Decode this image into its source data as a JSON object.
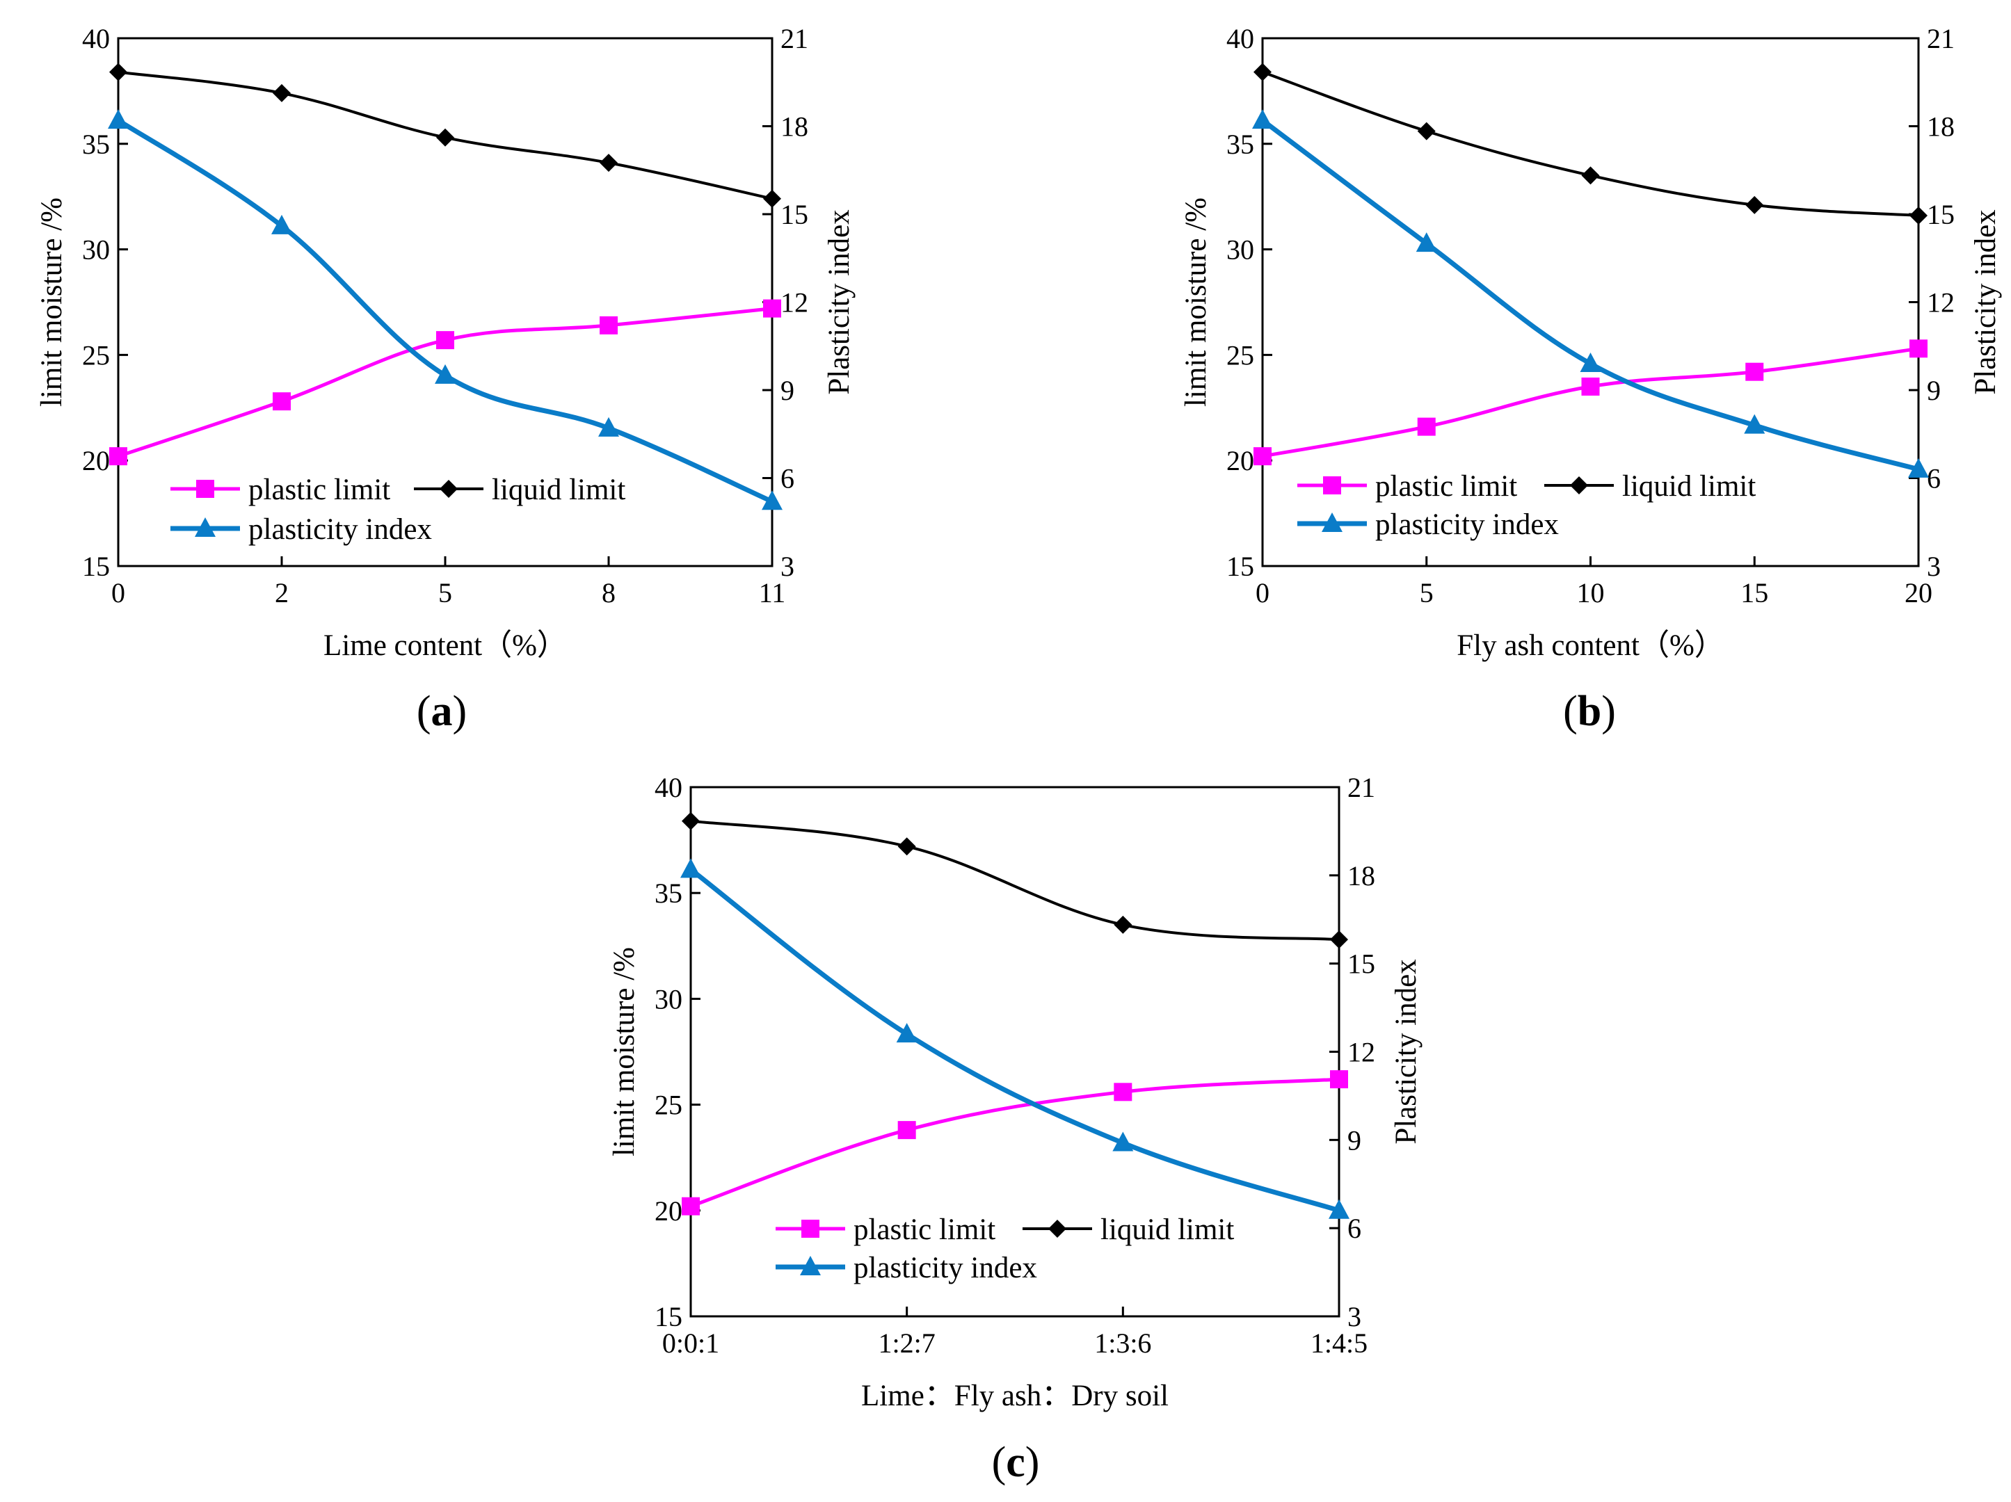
{
  "colors": {
    "plastic": "#ff00ff",
    "liquid": "#000000",
    "index": "#0a7cc8"
  },
  "chart_data": [
    {
      "type": "line",
      "panel_label": "(a)",
      "panel_letter": "a",
      "xlabel": "Lime content（%）",
      "ylabel": "limit moisture /%",
      "y2label": "Plasticity index",
      "categories": [
        "0",
        "2",
        "5",
        "8",
        "11"
      ],
      "ylim": [
        15,
        40
      ],
      "yticks": [
        "15",
        "20",
        "25",
        "30",
        "35",
        "40"
      ],
      "y2lim": [
        3,
        21
      ],
      "y2ticks": [
        "3",
        "6",
        "9",
        "12",
        "15",
        "18",
        "21"
      ],
      "series": [
        {
          "name": "plastic limit",
          "axis": "left",
          "marker": "square",
          "values": [
            20.2,
            22.8,
            25.7,
            26.4,
            27.2
          ]
        },
        {
          "name": "liquid limit",
          "axis": "left",
          "marker": "diamond",
          "values": [
            38.4,
            37.4,
            35.3,
            34.1,
            32.4
          ]
        },
        {
          "name": "plasticity index",
          "axis": "right",
          "marker": "triangle",
          "values": [
            18.2,
            14.6,
            9.5,
            7.7,
            5.2
          ]
        }
      ]
    },
    {
      "type": "line",
      "panel_label": "(b)",
      "panel_letter": "b",
      "xlabel": "Fly ash content（%）",
      "ylabel": "limit moisture /%",
      "y2label": "Plasticity index",
      "categories": [
        "0",
        "5",
        "10",
        "15",
        "20"
      ],
      "ylim": [
        15,
        40
      ],
      "yticks": [
        "15",
        "20",
        "25",
        "30",
        "35",
        "40"
      ],
      "y2lim": [
        3,
        21
      ],
      "y2ticks": [
        "3",
        "6",
        "9",
        "12",
        "15",
        "18",
        "21"
      ],
      "series": [
        {
          "name": "plastic limit",
          "axis": "left",
          "marker": "square",
          "values": [
            20.2,
            21.6,
            23.5,
            24.2,
            25.3
          ]
        },
        {
          "name": "liquid limit",
          "axis": "left",
          "marker": "diamond",
          "values": [
            38.4,
            35.6,
            33.5,
            32.1,
            31.6
          ]
        },
        {
          "name": "plasticity index",
          "axis": "right",
          "marker": "triangle",
          "values": [
            18.2,
            14.0,
            9.9,
            7.8,
            6.3
          ]
        }
      ]
    },
    {
      "type": "line",
      "panel_label": "(c)",
      "panel_letter": "c",
      "xlabel": "Lime：Fly ash：Dry soil",
      "ylabel": "limit moisture /%",
      "y2label": "Plasticity index",
      "categories": [
        "0:0:1",
        "1:2:7",
        "1:3:6",
        "1:4:5"
      ],
      "ylim": [
        15,
        40
      ],
      "yticks": [
        "15",
        "20",
        "25",
        "30",
        "35",
        "40"
      ],
      "y2lim": [
        3,
        21
      ],
      "y2ticks": [
        "3",
        "6",
        "9",
        "12",
        "15",
        "18",
        "21"
      ],
      "series": [
        {
          "name": "plastic limit",
          "axis": "left",
          "marker": "square",
          "values": [
            20.2,
            23.8,
            25.6,
            26.2
          ]
        },
        {
          "name": "liquid limit",
          "axis": "left",
          "marker": "diamond",
          "values": [
            38.4,
            37.2,
            33.5,
            32.8
          ]
        },
        {
          "name": "plasticity index",
          "axis": "right",
          "marker": "triangle",
          "values": [
            18.2,
            12.6,
            8.9,
            6.6
          ]
        }
      ]
    }
  ]
}
